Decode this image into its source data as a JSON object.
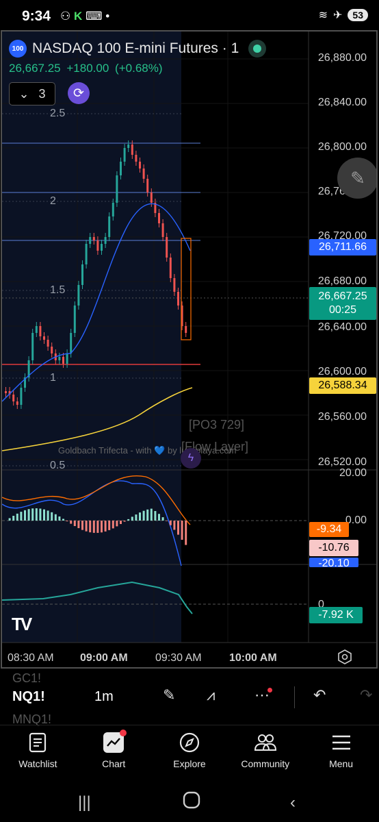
{
  "status_bar": {
    "time": "9:34",
    "battery": "53"
  },
  "symbol": {
    "badge": "100",
    "title": "NASDAQ 100 E-mini Futures · 1",
    "last": "26,667.25",
    "change": "+180.00",
    "change_pct": "(+0.68%)"
  },
  "layer_count": "3",
  "price_axis": [
    "26,880.00",
    "26,840.00",
    "26,800.00",
    "26,760.00",
    "26,720.00",
    "26,680.00",
    "26,640.00",
    "26,600.00",
    "26,560.00",
    "26,520.00"
  ],
  "price_tags": {
    "blue": "26,711.66",
    "current": "26,667.25",
    "countdown": "00:25",
    "yellow": "26,588.34"
  },
  "fib_levels": [
    "2.5",
    "2",
    "1.5",
    "1",
    "0.5"
  ],
  "overlays": {
    "po3": "[PO3 729]",
    "flow": "[Flow Layer]",
    "watermark": "Goldbach Trifecta - with 💙 by lumiplaya.com"
  },
  "macd_axis": {
    "top": "20.00",
    "zero": "0.00",
    "orange": "-9.34",
    "pink": "-10.76",
    "blue": "-20.10"
  },
  "volume_axis": {
    "zero": "0",
    "value": "-7.92 K"
  },
  "time_axis": [
    "08:30 AM",
    "09:00 AM",
    "09:30 AM",
    "10:00 AM"
  ],
  "toolbar": {
    "ghost_top": "GC1!",
    "symbol": "NQ1!",
    "ghost_bottom": "MNQ1!",
    "interval": "1m"
  },
  "nav": [
    "Watchlist",
    "Chart",
    "Explore",
    "Community",
    "Menu"
  ],
  "colors": {
    "up": "#26a69a",
    "down": "#ef5350",
    "blue": "#2962ff",
    "yellow": "#f6d33b",
    "orange": "#ff6d00"
  }
}
